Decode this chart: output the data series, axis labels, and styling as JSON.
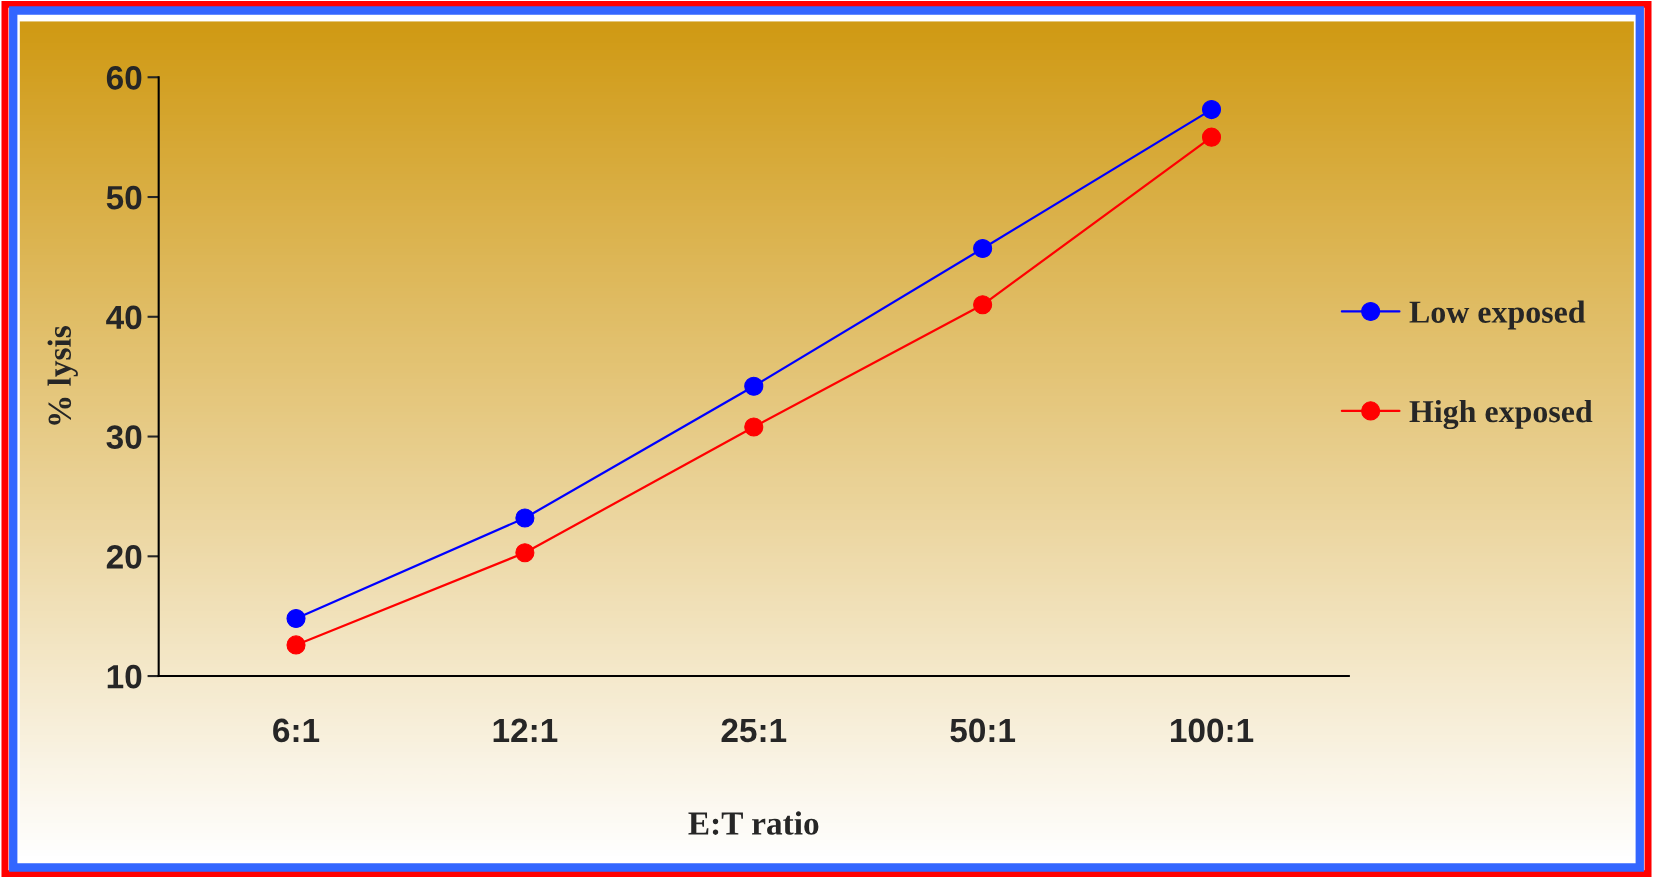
{
  "chart_data": {
    "type": "line",
    "xlabel": "E:T ratio",
    "ylabel": "% lysis",
    "categories": [
      "6:1",
      "12:1",
      "25:1",
      "50:1",
      "100:1"
    ],
    "ylim": [
      10,
      60
    ],
    "yticks": [
      10,
      20,
      30,
      40,
      50,
      60
    ],
    "series": [
      {
        "name": "Low exposed",
        "color": "#0000ff",
        "values": [
          14.8,
          23.2,
          34.2,
          45.7,
          57.3
        ]
      },
      {
        "name": "High exposed",
        "color": "#ff0000",
        "values": [
          12.6,
          20.3,
          30.8,
          41.0,
          55.0
        ]
      }
    ],
    "marker": "circle",
    "line_style": "solid",
    "grid": false,
    "legend": "right"
  }
}
